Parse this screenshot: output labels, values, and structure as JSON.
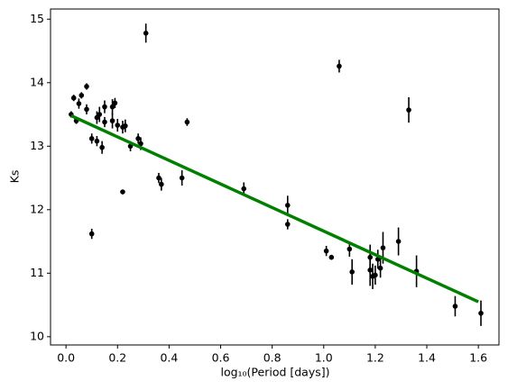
{
  "chart_data": {
    "type": "scatter",
    "x_label": "log₁₀(Period [days])",
    "y_label": "Ks",
    "x": [
      0.02,
      0.03,
      0.04,
      0.05,
      0.06,
      0.08,
      0.08,
      0.1,
      0.1,
      0.12,
      0.12,
      0.13,
      0.14,
      0.15,
      0.15,
      0.18,
      0.18,
      0.19,
      0.2,
      0.22,
      0.23,
      0.22,
      0.25,
      0.28,
      0.29,
      0.31,
      0.36,
      0.37,
      0.45,
      0.47,
      0.69,
      0.86,
      0.86,
      1.01,
      1.03,
      1.06,
      1.1,
      1.11,
      1.18,
      1.18,
      1.19,
      1.2,
      1.21,
      1.22,
      1.23,
      1.29,
      1.33,
      1.36,
      1.51,
      1.61
    ],
    "y": [
      13.5,
      13.76,
      13.4,
      13.67,
      13.8,
      13.94,
      13.58,
      13.12,
      11.62,
      13.45,
      13.08,
      13.5,
      12.98,
      13.62,
      13.38,
      13.4,
      13.62,
      13.68,
      13.33,
      13.3,
      13.32,
      12.28,
      13.0,
      13.12,
      13.04,
      14.78,
      12.5,
      12.4,
      12.5,
      13.38,
      12.33,
      12.07,
      11.77,
      11.35,
      11.25,
      14.26,
      11.38,
      11.02,
      11.25,
      11.05,
      10.95,
      10.97,
      11.22,
      11.08,
      11.4,
      11.5,
      13.57,
      11.03,
      10.48,
      10.37
    ],
    "yerr": [
      0.05,
      0.05,
      0.05,
      0.08,
      0.05,
      0.05,
      0.08,
      0.08,
      0.08,
      0.1,
      0.08,
      0.12,
      0.1,
      0.1,
      0.08,
      0.12,
      0.12,
      0.08,
      0.1,
      0.1,
      0.1,
      0.03,
      0.08,
      0.08,
      0.1,
      0.15,
      0.08,
      0.1,
      0.12,
      0.06,
      0.1,
      0.15,
      0.08,
      0.08,
      0.04,
      0.1,
      0.12,
      0.2,
      0.2,
      0.25,
      0.2,
      0.15,
      0.15,
      0.15,
      0.25,
      0.22,
      0.2,
      0.25,
      0.16,
      0.2
    ],
    "color": "#000000",
    "fit": {
      "x": [
        0.02,
        1.6
      ],
      "y": [
        13.48,
        10.55
      ],
      "color": "#008000"
    },
    "xlim": [
      -0.06,
      1.68
    ],
    "ylim": [
      9.87,
      15.16
    ],
    "xticks": [
      {
        "value": 0,
        "label": "0.0"
      },
      {
        "value": 0.2,
        "label": "0.2"
      },
      {
        "value": 0.4,
        "label": "0.4"
      },
      {
        "value": 0.6,
        "label": "0.6"
      },
      {
        "value": 0.8,
        "label": "0.8"
      },
      {
        "value": 1,
        "label": "1.0"
      },
      {
        "value": 1.2,
        "label": "1.2"
      },
      {
        "value": 1.4,
        "label": "1.4"
      },
      {
        "value": 1.6,
        "label": "1.6"
      }
    ],
    "yticks": [
      10,
      11,
      12,
      13,
      14,
      15
    ]
  }
}
